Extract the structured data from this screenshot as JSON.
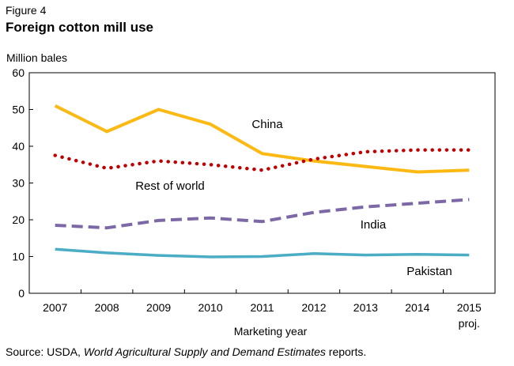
{
  "figure": {
    "label": "Figure 4",
    "title": "Foreign cotton mill use"
  },
  "source": {
    "prefix": "Source:  USDA, ",
    "italic": "World Agricultural Supply and Demand Estimates",
    "suffix": " reports."
  },
  "colors": {
    "china": "#FDB913",
    "rest_of_world": "#C00000",
    "india": "#7D68A6",
    "pakistan": "#4BACC6",
    "axis": "#000000"
  },
  "chart_data": {
    "type": "line",
    "title": "Foreign cotton mill use",
    "ylabel": "Million bales",
    "xlabel": "Marketing year",
    "ylim": [
      0,
      60
    ],
    "yticks": [
      0,
      10,
      20,
      30,
      40,
      50,
      60
    ],
    "categories": [
      "2007",
      "2008",
      "2009",
      "2010",
      "2011",
      "2012",
      "2013",
      "2014",
      "2015"
    ],
    "category_notes": {
      "2015": "proj."
    },
    "grid": false,
    "series": [
      {
        "name": "China",
        "style": "solid",
        "values": [
          51,
          44,
          50,
          46,
          38,
          36,
          34.5,
          33,
          33.5
        ]
      },
      {
        "name": "Rest of world",
        "style": "dotted",
        "values": [
          37.5,
          34,
          36,
          35,
          33.5,
          36.5,
          38.5,
          39,
          39
        ]
      },
      {
        "name": "India",
        "style": "dashed",
        "values": [
          18.5,
          17.8,
          19.8,
          20.5,
          19.5,
          22,
          23.5,
          24.5,
          25.5
        ]
      },
      {
        "name": "Pakistan",
        "style": "solid",
        "values": [
          12,
          11,
          10.3,
          9.9,
          10,
          10.8,
          10.4,
          10.6,
          10.4
        ]
      }
    ]
  }
}
